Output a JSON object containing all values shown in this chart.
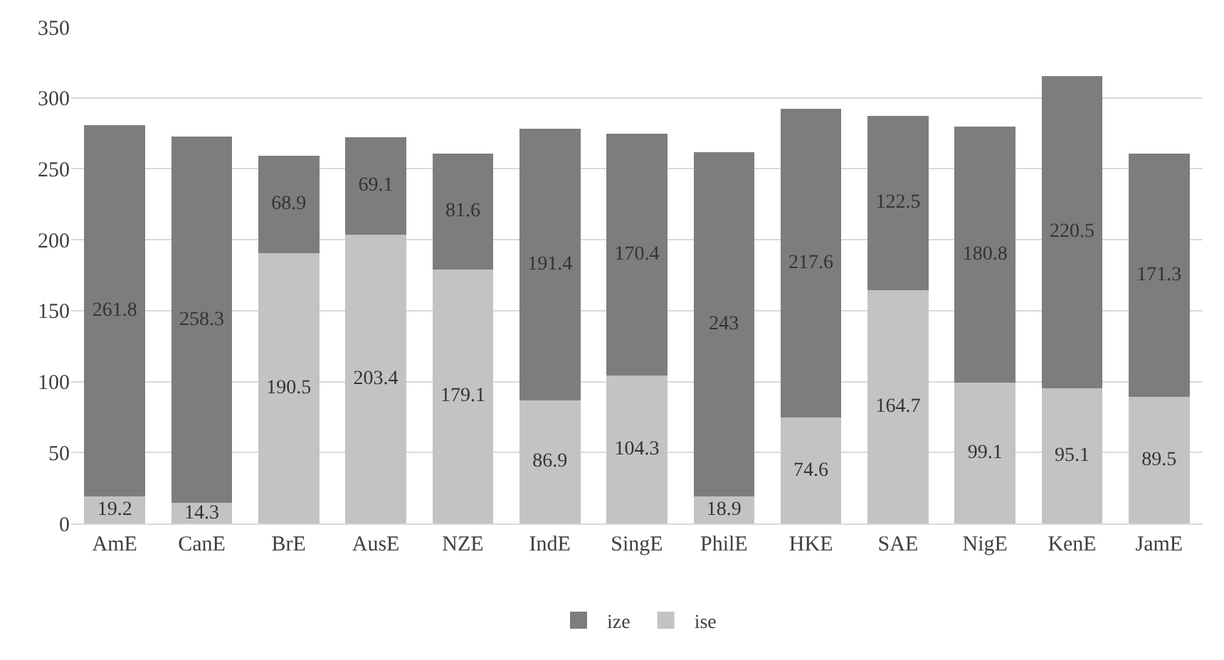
{
  "chart_data": {
    "type": "bar",
    "stacked": true,
    "categories": [
      "AmE",
      "CanE",
      "BrE",
      "AusE",
      "NZE",
      "IndE",
      "SingE",
      "PhilE",
      "HKE",
      "SAE",
      "NigE",
      "KenE",
      "JamE"
    ],
    "series": [
      {
        "name": "ise",
        "color": "#c3c3c3",
        "values": [
          19.2,
          14.3,
          190.5,
          203.4,
          179.1,
          86.9,
          104.3,
          18.9,
          74.6,
          164.7,
          99.1,
          95.1,
          89.5
        ]
      },
      {
        "name": "ize",
        "color": "#7d7d7d",
        "values": [
          261.8,
          258.3,
          68.9,
          69.1,
          81.6,
          191.4,
          170.4,
          243,
          217.6,
          122.5,
          180.8,
          220.5,
          171.3
        ]
      }
    ],
    "ylim": [
      0,
      350
    ],
    "yticks": [
      0,
      50,
      100,
      150,
      200,
      250,
      300,
      350
    ],
    "grid": "y",
    "legend": "bottom",
    "data_labels": true
  }
}
